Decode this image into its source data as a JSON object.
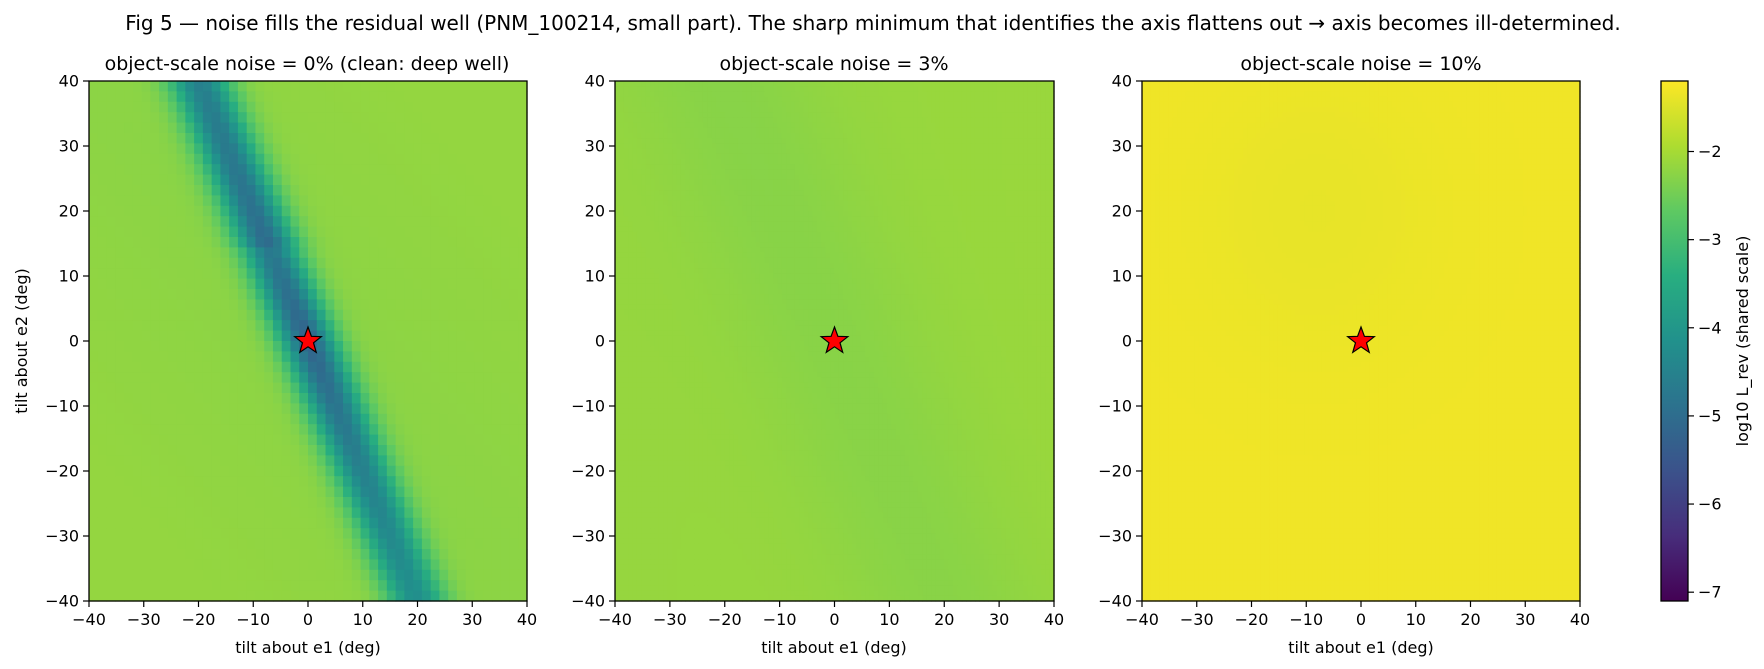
{
  "figure": {
    "suptitle": "Fig 5 — noise fills the residual well (PNM_100214, small part). The sharp minimum that identifies the axis flattens out → axis becomes ill-determined."
  },
  "colorbar": {
    "label": "log10 L_rev (shared scale)",
    "colormap": "viridis",
    "range": [
      -7.1,
      -1.2
    ],
    "ticks": [
      "−7",
      "−6",
      "−5",
      "−4",
      "−3",
      "−2"
    ],
    "tick_values": [
      -7,
      -6,
      -5,
      -4,
      -3,
      -2
    ]
  },
  "chart_data": [
    {
      "type": "heatmap",
      "title": "object-scale noise = 0%   (clean: deep well)",
      "xlabel": "tilt about e1 (deg)",
      "ylabel": "tilt about e2 (deg)",
      "xlim": [
        -40,
        40
      ],
      "ylim": [
        -40,
        40
      ],
      "xticks": [
        "−40",
        "−30",
        "−20",
        "−10",
        "0",
        "10",
        "20",
        "30",
        "40"
      ],
      "yticks": [
        "40",
        "30",
        "20",
        "10",
        "0",
        "−10",
        "−20",
        "−30",
        "−40"
      ],
      "minimum_marker": {
        "x": 0,
        "y": 0,
        "symbol": "red star"
      },
      "pattern": "narrow diagonal valley running from (-20, 40) to (20, -40), deepest near the origin",
      "value_range_approx": [
        -5.5,
        -2.2
      ],
      "grid_resolution": 50
    },
    {
      "type": "heatmap",
      "title": "object-scale noise = 3%",
      "xlabel": "tilt about e1 (deg)",
      "xlim": [
        -40,
        40
      ],
      "ylim": [
        -40,
        40
      ],
      "xticks": [
        "−40",
        "−30",
        "−20",
        "−10",
        "0",
        "10",
        "20",
        "30",
        "40"
      ],
      "yticks": [
        "40",
        "30",
        "20",
        "10",
        "0",
        "−10",
        "−20",
        "−30",
        "−40"
      ],
      "minimum_marker": {
        "x": 0,
        "y": 0,
        "symbol": "red star"
      },
      "pattern": "nearly flat surface, faint shallow diagonal trough",
      "value_range_approx": [
        -2.35,
        -2.1
      ],
      "grid_resolution": 100
    },
    {
      "type": "heatmap",
      "title": "object-scale noise = 10%",
      "xlabel": "tilt about e1 (deg)",
      "xlim": [
        -40,
        40
      ],
      "ylim": [
        -40,
        40
      ],
      "xticks": [
        "−40",
        "−30",
        "−20",
        "−10",
        "0",
        "10",
        "20",
        "30",
        "40"
      ],
      "yticks": [
        "40",
        "30",
        "20",
        "10",
        "0",
        "−10",
        "−20",
        "−30",
        "−40"
      ],
      "minimum_marker": {
        "x": 0,
        "y": 0,
        "symbol": "red star"
      },
      "pattern": "essentially flat at the top of the colour scale",
      "value_range_approx": [
        -1.45,
        -1.3
      ],
      "grid_resolution": 100
    }
  ]
}
